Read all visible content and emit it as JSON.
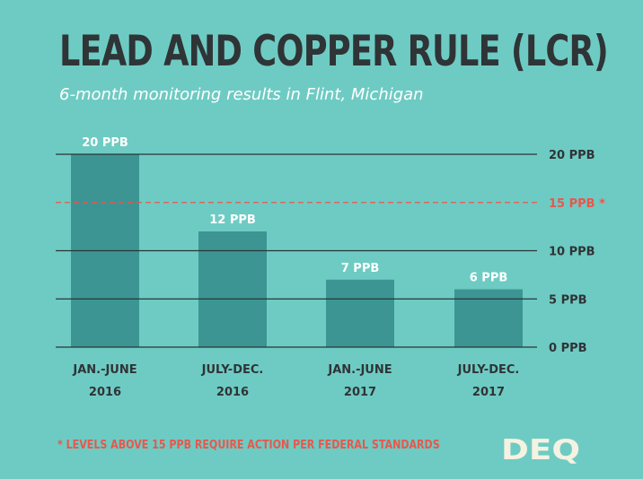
{
  "title": "LEAD AND COPPER RULE (LCR)",
  "subtitle": "6-month monitoring results in Flint, Michigan",
  "footnote": "* LEVELS ABOVE 15 PPB REQUIRE ACTION PER FEDERAL STANDARDS",
  "logo": {
    "text": "DEQ",
    "icon": "michigan-state-shape"
  },
  "colors": {
    "background": "#6ecbc3",
    "bar": "#3c9593",
    "title": "#2f3436",
    "axis_line": "#2b3436",
    "threshold": "#e8574d",
    "label": "#ffffff",
    "tick": "#2f3436"
  },
  "chart_data": {
    "type": "bar",
    "categories": [
      [
        "JAN.-JUNE",
        "2016"
      ],
      [
        "JULY-DEC.",
        "2016"
      ],
      [
        "JAN.-JUNE",
        "2017"
      ],
      [
        "JULY-DEC.",
        "2017"
      ]
    ],
    "values": [
      20,
      12,
      7,
      6
    ],
    "data_labels": [
      "20 PPB",
      "12 PPB",
      "7 PPB",
      "6 PPB"
    ],
    "unit": "PPB",
    "ylim": [
      0,
      20
    ],
    "yticks": [
      {
        "value": 0,
        "label": "0 PPB"
      },
      {
        "value": 5,
        "label": "5 PPB"
      },
      {
        "value": 10,
        "label": "10 PPB"
      },
      {
        "value": 20,
        "label": "20 PPB"
      }
    ],
    "threshold": {
      "value": 15,
      "label": "15 PPB *",
      "style": "dashed"
    },
    "grid": true,
    "y_axis_side": "right"
  }
}
